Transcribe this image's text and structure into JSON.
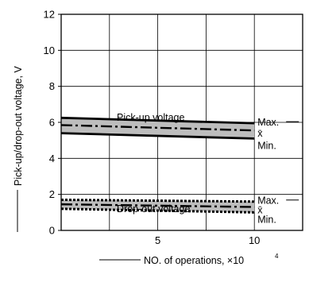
{
  "chart_data": {
    "type": "line",
    "xlabel": "NO. of operations, ×10",
    "xlabel_exponent": "4",
    "ylabel": "Pick-up/drop-out voltage, V",
    "xlim": [
      0,
      12.5
    ],
    "ylim": [
      0,
      12
    ],
    "x_ticks": [
      5,
      10
    ],
    "y_ticks": [
      0,
      2,
      4,
      6,
      8,
      10,
      12
    ],
    "x_gridlines": [
      2.5,
      5,
      7.5,
      10
    ],
    "y_gridlines": [
      2,
      4,
      6,
      8,
      10
    ],
    "grid": true,
    "groups": [
      {
        "name": "Pick-up voltage",
        "x": [
          0,
          10
        ],
        "series": [
          {
            "name": "Max.",
            "values": [
              6.25,
              5.95
            ]
          },
          {
            "name": "x̄",
            "values": [
              5.85,
              5.55
            ]
          },
          {
            "name": "Min.",
            "values": [
              5.4,
              5.1
            ]
          }
        ]
      },
      {
        "name": "Drop-out voltage",
        "x": [
          0,
          10
        ],
        "series": [
          {
            "name": "Max.",
            "values": [
              1.7,
              1.6
            ]
          },
          {
            "name": "x̄",
            "values": [
              1.45,
              1.3
            ]
          },
          {
            "name": "Min.",
            "values": [
              1.2,
              1.0
            ]
          }
        ]
      }
    ],
    "band_color": "#bdbdbd",
    "line_color": "#000000"
  }
}
